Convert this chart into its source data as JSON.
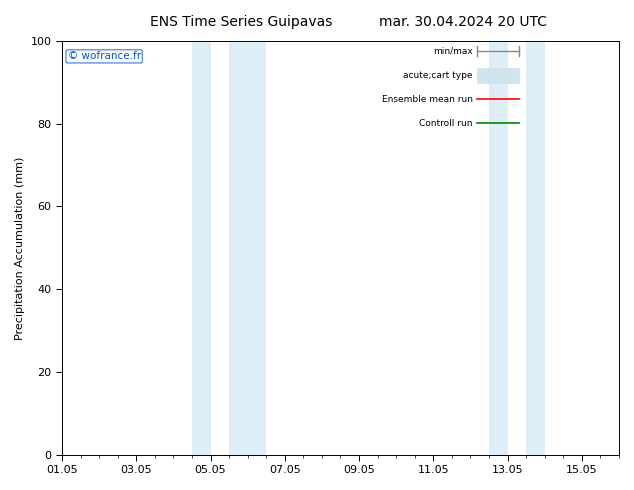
{
  "title": "ENS Time Series Guipavas",
  "title2": "mar. 30.04.2024 20 UTC",
  "ylabel": "Precipitation Accumulation (mm)",
  "xlabel": "",
  "ylim": [
    0,
    100
  ],
  "xlim": [
    0,
    15
  ],
  "xtick_labels": [
    "01.05",
    "03.05",
    "05.05",
    "07.05",
    "09.05",
    "11.05",
    "13.05",
    "15.05"
  ],
  "xtick_positions": [
    0,
    2,
    4,
    6,
    8,
    10,
    12,
    14
  ],
  "ytick_labels": [
    "0",
    "20",
    "40",
    "60",
    "80",
    "100"
  ],
  "ytick_positions": [
    0,
    20,
    40,
    60,
    80,
    100
  ],
  "shaded_bands": [
    {
      "x_start": 3.5,
      "x_end": 4.0,
      "color": "#ddeef8"
    },
    {
      "x_start": 4.5,
      "x_end": 5.5,
      "color": "#ddeef8"
    },
    {
      "x_start": 11.5,
      "x_end": 12.0,
      "color": "#ddeef8"
    },
    {
      "x_start": 12.5,
      "x_end": 13.0,
      "color": "#ddeef8"
    }
  ],
  "background_color": "#ffffff",
  "plot_bg_color": "#ffffff",
  "watermark_text": "© wofrance.fr",
  "watermark_color": "#0055cc",
  "legend_items": [
    {
      "label": "min/max",
      "type": "minmax",
      "color": "#888888"
    },
    {
      "label": "acute;cart type",
      "type": "box",
      "color": "#d0e4f0"
    },
    {
      "label": "Ensemble mean run",
      "type": "line",
      "color": "#ff0000"
    },
    {
      "label": "Controll run",
      "type": "line",
      "color": "#008800"
    }
  ],
  "font_size_title": 10,
  "font_size_axis": 8,
  "font_size_tick": 8,
  "font_size_watermark": 7.5,
  "font_size_legend": 6.5,
  "tick_color": "#000000"
}
